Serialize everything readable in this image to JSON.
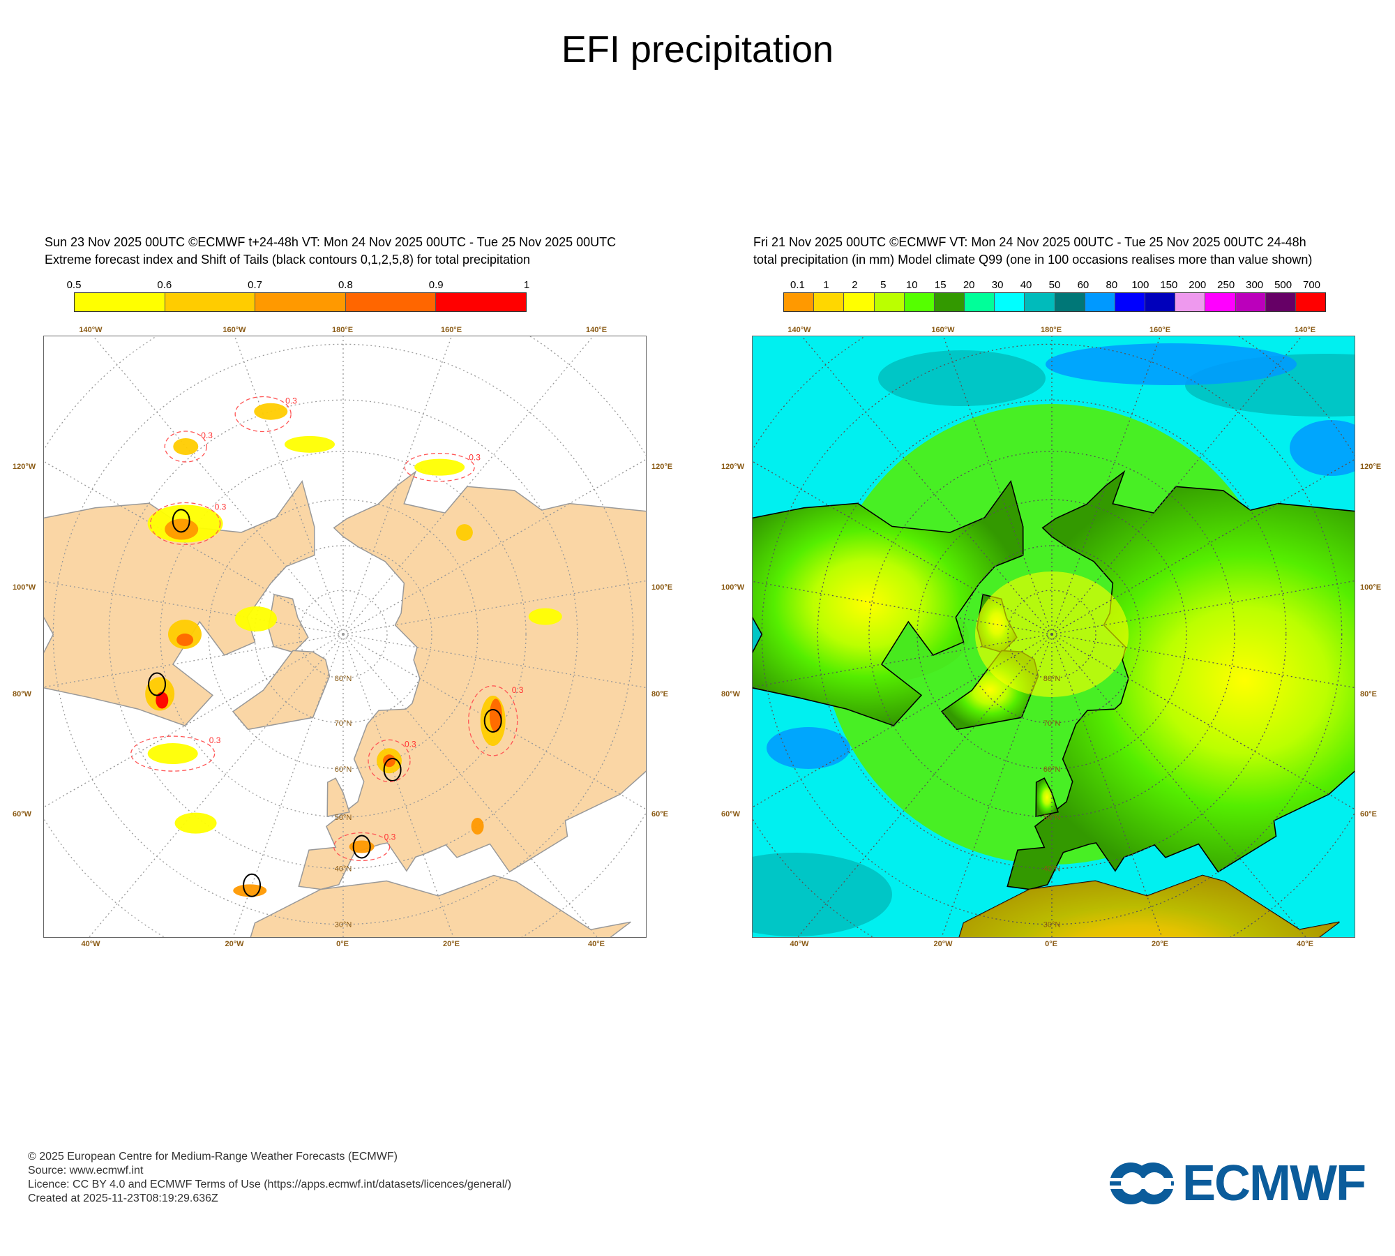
{
  "title": "EFI precipitation",
  "chart_data": [
    {
      "type": "heatmap",
      "panel": "left",
      "header_line1": "Sun 23 Nov 2025 00UTC ©ECMWF t+24-48h  VT: Mon 24 Nov 2025 00UTC - Tue 25 Nov 2025 00UTC",
      "header_line2": "Extreme forecast index and Shift of Tails (black contours 0,1,2,5,8) for total precipitation",
      "colorbar": {
        "ticks": [
          "0.5",
          "0.6",
          "0.7",
          "0.8",
          "0.9",
          "1"
        ],
        "colors": [
          "#ffff00",
          "#ffcc00",
          "#ff9900",
          "#ff6600",
          "#ff0000"
        ]
      },
      "contour_label": "0.3",
      "projection": "polar stereographic, North Pole",
      "top_labels": [
        "140°W",
        "160°W",
        "180°E",
        "160°E",
        "140°E"
      ],
      "left_labels": [
        "120°W",
        "100°W",
        "80°W",
        "60°W"
      ],
      "right_labels": [
        "120°E",
        "100°E",
        "80°E",
        "60°E"
      ],
      "bottom_labels": [
        "40°W",
        "20°W",
        "0°E",
        "20°E",
        "40°E"
      ],
      "lat_labels": [
        "80°N",
        "70°N",
        "60°N",
        "50°N",
        "40°N",
        "30°N"
      ],
      "land_color": "#fad6a5",
      "ocean_color": "#ffffff"
    },
    {
      "type": "heatmap",
      "panel": "right",
      "header_line1": "Fri 21 Nov 2025 00UTC ©ECMWF VT: Mon 24 Nov 2025 00UTC - Tue 25 Nov 2025 00UTC   24-48h",
      "header_line2": "total precipitation (in mm)  Model climate Q99 (one in 100 occasions realises more than value shown)",
      "colorbar": {
        "ticks": [
          "0.1",
          "1",
          "2",
          "5",
          "10",
          "15",
          "20",
          "30",
          "40",
          "50",
          "60",
          "80",
          "100",
          "150",
          "200",
          "250",
          "300",
          "500",
          "700"
        ],
        "colors": [
          "#ff9900",
          "#ffd700",
          "#ffff00",
          "#bbff00",
          "#55ff00",
          "#339900",
          "#00ff99",
          "#00ffff",
          "#00bbbb",
          "#007777",
          "#0099ff",
          "#0000ff",
          "#0000bb",
          "#ee99ee",
          "#ff00ff",
          "#bb00bb",
          "#660066",
          "#ff0000"
        ]
      },
      "projection": "polar stereographic, North Pole",
      "top_labels": [
        "140°W",
        "160°W",
        "180°E",
        "160°E",
        "140°E"
      ],
      "left_labels": [
        "120°W",
        "100°W",
        "80°W",
        "60°W"
      ],
      "right_labels": [
        "120°E",
        "100°E",
        "80°E",
        "60°E"
      ],
      "bottom_labels": [
        "40°W",
        "20°W",
        "0°E",
        "20°E",
        "40°E"
      ],
      "lat_labels": [
        "80°N",
        "70°N",
        "60°N",
        "50°N",
        "40°N",
        "30°N"
      ]
    }
  ],
  "footer": {
    "copyright": "© 2025 European Centre for Medium-Range Weather Forecasts (ECMWF)",
    "source": "Source: www.ecmwf.int",
    "licence": "Licence: CC BY 4.0 and ECMWF Terms of Use (https://apps.ecmwf.int/datasets/licences/general/)",
    "created": "Created at 2025-11-23T08:19:29.636Z"
  },
  "logo": {
    "text": "ECMWF",
    "color": "#0b5c9b"
  }
}
